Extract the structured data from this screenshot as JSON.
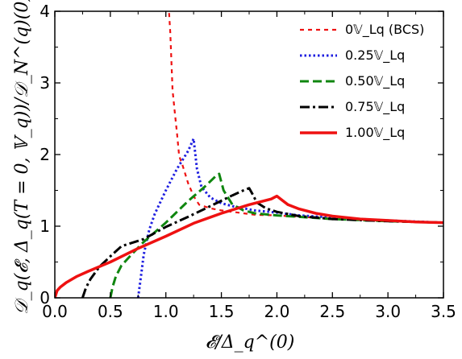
{
  "chart_data": {
    "type": "line",
    "xlabel": "𝓔/Δ_q^(0)",
    "ylabel": "𝒟_q(𝓔, Δ_q(T = 0, 𝕍_q))/𝒟_N^(q)(0)",
    "xlim": [
      0.0,
      3.5
    ],
    "ylim": [
      0,
      4
    ],
    "xticks": [
      "0.0",
      "0.5",
      "1.0",
      "1.5",
      "2.0",
      "2.5",
      "3.0",
      "3.5"
    ],
    "yticks": [
      "0",
      "1",
      "2",
      "3",
      "4"
    ],
    "grid": false,
    "legend_position": "top-right",
    "series": [
      {
        "name": "0𝕍_Lq (BCS)",
        "color": "#ee1111",
        "style": "dashed-fine",
        "x": [
          1.02,
          1.04,
          1.06,
          1.08,
          1.1,
          1.12,
          1.15,
          1.2,
          1.25,
          1.3,
          1.4,
          1.5,
          1.6,
          1.8,
          2.0,
          2.2,
          2.5,
          3.0,
          3.5
        ],
        "y": [
          4.2,
          3.7,
          2.9,
          2.6,
          2.3,
          1.98,
          1.85,
          1.6,
          1.42,
          1.3,
          1.25,
          1.22,
          1.2,
          1.16,
          1.15,
          1.13,
          1.11,
          1.07,
          1.05
        ]
      },
      {
        "name": "0.25𝕍_Lq",
        "color": "#1f1fe0",
        "style": "dotted",
        "x": [
          0.75,
          0.78,
          0.8,
          0.85,
          0.9,
          1.0,
          1.1,
          1.2,
          1.25,
          1.28,
          1.32,
          1.4,
          1.5,
          1.6,
          1.8,
          2.0,
          2.2,
          2.5,
          3.0,
          3.5
        ],
        "y": [
          0.0,
          0.35,
          0.6,
          0.95,
          1.17,
          1.5,
          1.8,
          2.05,
          2.22,
          1.8,
          1.55,
          1.4,
          1.32,
          1.28,
          1.22,
          1.19,
          1.15,
          1.12,
          1.08,
          1.05
        ]
      },
      {
        "name": "0.50𝕍_Lq",
        "color": "#0f860f",
        "style": "dashed",
        "x": [
          0.5,
          0.52,
          0.55,
          0.6,
          0.7,
          0.8,
          1.0,
          1.2,
          1.35,
          1.45,
          1.48,
          1.52,
          1.6,
          1.7,
          1.8,
          2.0,
          2.2,
          2.5,
          3.0,
          3.5
        ],
        "y": [
          0.0,
          0.15,
          0.3,
          0.45,
          0.62,
          0.78,
          1.05,
          1.35,
          1.55,
          1.7,
          1.73,
          1.5,
          1.3,
          1.22,
          1.18,
          1.15,
          1.13,
          1.1,
          1.07,
          1.05
        ]
      },
      {
        "name": "0.75𝕍_Lq",
        "color": "#000000",
        "style": "dashdot",
        "x": [
          0.25,
          0.28,
          0.32,
          0.4,
          0.5,
          0.6,
          0.8,
          1.0,
          1.2,
          1.4,
          1.6,
          1.7,
          1.75,
          1.78,
          1.82,
          1.9,
          2.0,
          2.2,
          2.5,
          3.0,
          3.5
        ],
        "y": [
          0.0,
          0.14,
          0.26,
          0.43,
          0.58,
          0.72,
          0.82,
          0.99,
          1.13,
          1.28,
          1.43,
          1.5,
          1.53,
          1.45,
          1.33,
          1.25,
          1.2,
          1.14,
          1.1,
          1.07,
          1.05
        ]
      },
      {
        "name": "1.00𝕍_Lq",
        "color": "#ee1111",
        "style": "solid-thick",
        "x": [
          0.0,
          0.02,
          0.05,
          0.1,
          0.2,
          0.3,
          0.5,
          0.75,
          1.0,
          1.25,
          1.5,
          1.75,
          1.95,
          2.0,
          2.05,
          2.1,
          2.2,
          2.35,
          2.5,
          2.75,
          3.0,
          3.25,
          3.5
        ],
        "y": [
          0.0,
          0.1,
          0.15,
          0.21,
          0.3,
          0.37,
          0.5,
          0.69,
          0.86,
          1.04,
          1.18,
          1.3,
          1.38,
          1.42,
          1.36,
          1.3,
          1.24,
          1.18,
          1.14,
          1.1,
          1.08,
          1.06,
          1.05
        ]
      }
    ]
  }
}
